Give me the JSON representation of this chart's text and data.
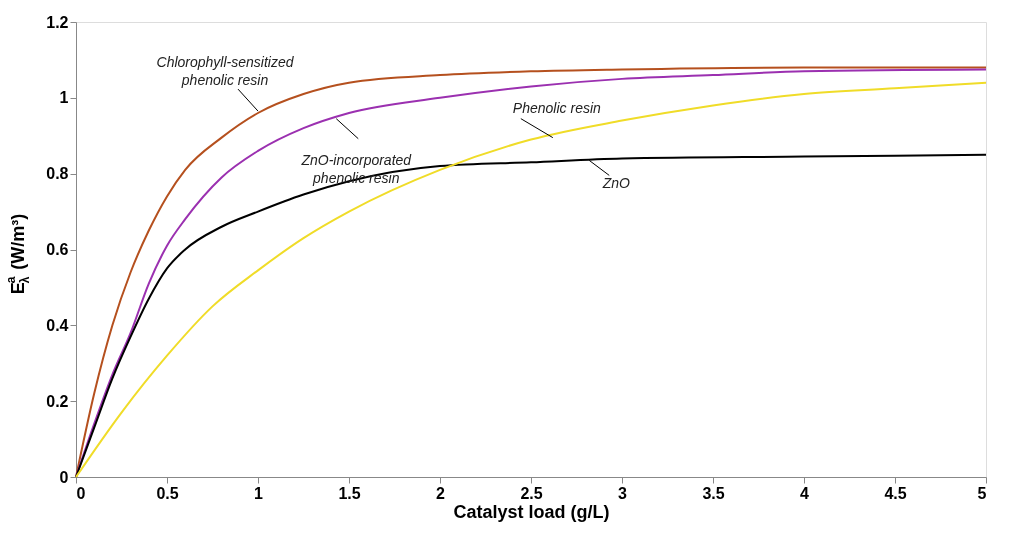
{
  "chart_data": {
    "type": "line",
    "xlabel": "Catalyst load (g/L)",
    "ylabel": "E$^{a}$$_{λ}$ (W/m³)",
    "xlim": [
      0,
      5
    ],
    "ylim": [
      0,
      1.2
    ],
    "xticks": [
      0,
      0.5,
      1,
      1.5,
      2,
      2.5,
      3,
      3.5,
      4,
      4.5,
      5
    ],
    "yticks": [
      0,
      0.2,
      0.4,
      0.6,
      0.8,
      1,
      1.2
    ],
    "grid": false,
    "marker": "none",
    "line_style": "solid",
    "series": [
      {
        "color": "#b5501e",
        "x": [
          0,
          0.1,
          0.2,
          0.3,
          0.4,
          0.5,
          0.6,
          0.8,
          1,
          1.25,
          1.5,
          2,
          2.5,
          3,
          4,
          5
        ],
        "values": [
          0,
          0.22,
          0.4,
          0.54,
          0.65,
          0.74,
          0.81,
          0.895,
          0.96,
          1.01,
          1.04,
          1.06,
          1.07,
          1.075,
          1.08,
          1.08
        ]
      },
      {
        "color": "#9b30b0",
        "x": [
          0,
          0.1,
          0.2,
          0.3,
          0.4,
          0.5,
          0.6,
          0.8,
          1,
          1.25,
          1.5,
          2,
          2.5,
          3,
          3.5,
          4,
          5
        ],
        "values": [
          0,
          0.14,
          0.27,
          0.38,
          0.51,
          0.61,
          0.68,
          0.79,
          0.86,
          0.92,
          0.96,
          1.0,
          1.03,
          1.05,
          1.06,
          1.07,
          1.075
        ]
      },
      {
        "color": "#000000",
        "x": [
          0,
          0.1,
          0.2,
          0.3,
          0.4,
          0.5,
          0.6,
          0.8,
          1,
          1.25,
          1.5,
          2,
          2.5,
          3,
          4,
          5
        ],
        "values": [
          0,
          0.13,
          0.26,
          0.37,
          0.47,
          0.55,
          0.6,
          0.66,
          0.7,
          0.745,
          0.78,
          0.82,
          0.83,
          0.84,
          0.845,
          0.85
        ]
      },
      {
        "color": "#f0dc28",
        "x": [
          0,
          0.25,
          0.5,
          0.75,
          1,
          1.25,
          1.5,
          2,
          2.5,
          3,
          3.5,
          4,
          4.5,
          5
        ],
        "values": [
          0,
          0.17,
          0.32,
          0.45,
          0.545,
          0.63,
          0.7,
          0.81,
          0.89,
          0.94,
          0.98,
          1.01,
          1.025,
          1.04
        ]
      }
    ],
    "annotations": [
      {
        "text": "Chlorophyll-sensitized\nphenolic resin",
        "x": 1.0,
        "y": 0.965
      },
      {
        "text": "ZnO-incorporated\nphenolic resin",
        "x": 1.43,
        "y": 0.945
      },
      {
        "text": "Phenolic resin",
        "x": 2.62,
        "y": 0.895
      },
      {
        "text": "ZnO",
        "x": 2.82,
        "y": 0.835
      }
    ]
  }
}
